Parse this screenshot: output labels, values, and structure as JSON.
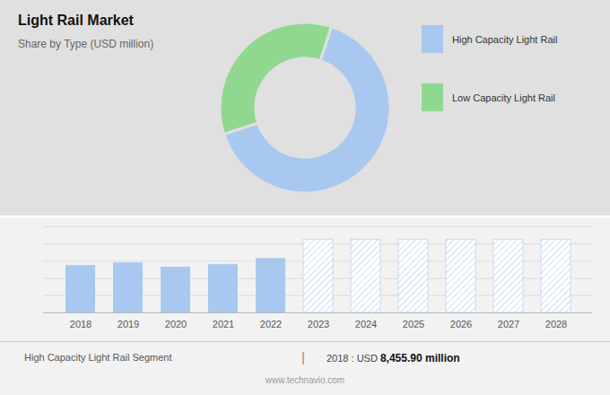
{
  "chart_data": [
    {
      "type": "pie",
      "title": "Light Rail Market",
      "subtitle": "Share by Type (USD million)",
      "categories": [
        "High Capacity Light Rail",
        "Low Capacity Light Rail"
      ],
      "values": [
        65,
        35
      ],
      "colors": [
        "#a8c8f0",
        "#90d890"
      ]
    },
    {
      "type": "bar",
      "categories": [
        "2018",
        "2019",
        "2020",
        "2021",
        "2022",
        "2023",
        "2024",
        "2025",
        "2026",
        "2027",
        "2028"
      ],
      "series": [
        {
          "color": "#a8c8f0",
          "values": [
            0.55,
            0.58,
            0.53,
            0.56,
            0.63,
            null,
            null,
            null,
            null,
            null,
            null
          ]
        },
        {
          "color": "#a8c8f0",
          "line_style": "hatched",
          "values": [
            null,
            null,
            null,
            null,
            null,
            0.85,
            0.85,
            0.85,
            0.85,
            0.85,
            0.85
          ]
        }
      ],
      "ylim": [
        0,
        1.0
      ],
      "yticks": [
        0.2,
        0.4,
        0.6,
        0.8,
        1.0
      ],
      "grid": true,
      "tick_labels": "x",
      "annotations": [
        "High Capacity Light Rail Segment",
        "|",
        "2018 : USD ",
        "8,455.90 million",
        "www.technavio.com"
      ]
    }
  ]
}
